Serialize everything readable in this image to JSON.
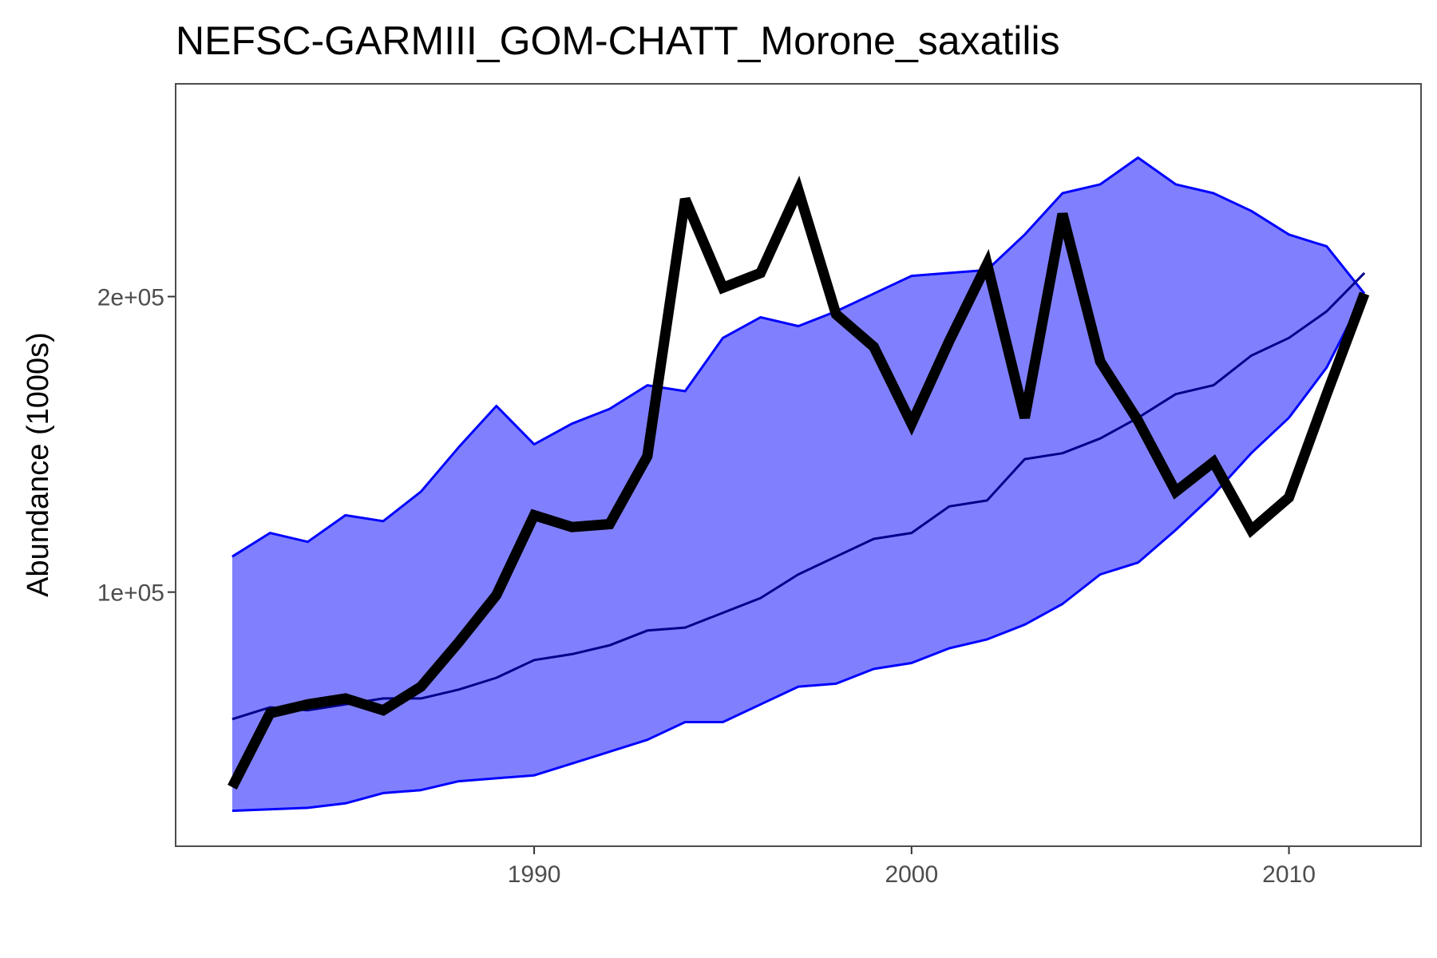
{
  "chart_data": {
    "type": "line",
    "title": "NEFSC-GARMIII_GOM-CHATT_Morone_saxatilis",
    "xlabel": "",
    "ylabel": "Abundance (1000s)",
    "xlim": [
      1980.5,
      2013.5
    ],
    "ylim": [
      14000,
      272000
    ],
    "x_ticks": [
      1990,
      2000,
      2010
    ],
    "x_tick_labels": [
      "1990",
      "2000",
      "2010"
    ],
    "y_ticks": [
      100000,
      200000
    ],
    "y_tick_labels": [
      "1e+05",
      "2e+05"
    ],
    "grid": false,
    "legend": "none",
    "colors": {
      "band_fill": "#8080ff",
      "band_edge": "#0000ff",
      "median": "#00008b",
      "observed": "#000000",
      "frame": "#4d4d4d"
    },
    "x": [
      1982,
      1983,
      1984,
      1985,
      1986,
      1987,
      1988,
      1989,
      1990,
      1991,
      1992,
      1993,
      1994,
      1995,
      1996,
      1997,
      1998,
      1999,
      2000,
      2001,
      2002,
      2003,
      2004,
      2005,
      2006,
      2007,
      2008,
      2009,
      2010,
      2011,
      2012
    ],
    "series": [
      {
        "role": "band_upper",
        "values": [
          112000,
          120000,
          117000,
          126000,
          124000,
          134000,
          149000,
          163000,
          150000,
          157000,
          162000,
          170000,
          168000,
          186000,
          193000,
          190000,
          195000,
          201000,
          207000,
          208000,
          209000,
          221000,
          235000,
          238000,
          247000,
          238000,
          235000,
          229000,
          221000,
          217000,
          201000
        ]
      },
      {
        "role": "median",
        "values": [
          57000,
          61000,
          60000,
          62000,
          64000,
          64000,
          67000,
          71000,
          77000,
          79000,
          82000,
          87000,
          88000,
          93000,
          98000,
          106000,
          112000,
          118000,
          120000,
          129000,
          131000,
          145000,
          147000,
          152000,
          159000,
          167000,
          170000,
          180000,
          186000,
          195000,
          208000
        ]
      },
      {
        "role": "band_lower",
        "values": [
          26000,
          26500,
          27000,
          28500,
          32000,
          33000,
          36000,
          37000,
          38000,
          42000,
          46000,
          50000,
          56000,
          56000,
          62000,
          68000,
          69000,
          74000,
          76000,
          81000,
          84000,
          89000,
          96000,
          106000,
          110000,
          121000,
          133000,
          147000,
          159000,
          176000,
          201000
        ]
      },
      {
        "role": "observed",
        "values": [
          34000,
          59000,
          62000,
          64000,
          60000,
          68000,
          83000,
          99000,
          126000,
          122000,
          123000,
          146000,
          233000,
          203000,
          208000,
          236000,
          194000,
          183000,
          157000,
          185000,
          211000,
          159000,
          228000,
          178000,
          158000,
          134000,
          144000,
          121000,
          132000,
          167000,
          201000
        ]
      }
    ]
  }
}
